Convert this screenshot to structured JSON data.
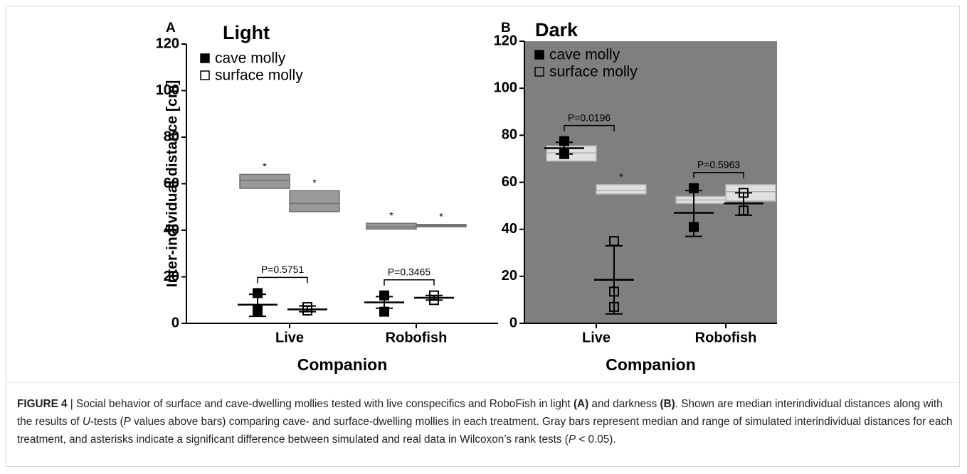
{
  "chart_data": [
    {
      "type": "dotplot",
      "panel_label": "A",
      "title": "Light",
      "ylabel": "Inter-individual distance [cm]",
      "xlabel": "Companion",
      "categories": [
        "Live",
        "Robofish"
      ],
      "ylim": [
        0,
        120
      ],
      "yticks": [
        0,
        20,
        40,
        60,
        80,
        100,
        120
      ],
      "background": "#ffffff",
      "sim_color": "#999999",
      "sim_stroke": "#6e6e6e",
      "series": [
        {
          "name": "cave molly",
          "marker": "filled",
          "color": "#000000",
          "groups": [
            {
              "points": [
                13,
                5.5
              ],
              "center": 8,
              "whisker_low": 3,
              "whisker_high": 12.5,
              "sim_low": 58,
              "sim_median": 61.5,
              "sim_high": 64,
              "sim_note": "*"
            },
            {
              "points": [
                12,
                5
              ],
              "center": 9,
              "whisker_low": 6.5,
              "whisker_high": 11.5,
              "sim_low": 40.5,
              "sim_median": 41.5,
              "sim_high": 43,
              "sim_note": "*"
            }
          ]
        },
        {
          "name": "surface molly",
          "marker": "open",
          "color": "#000000",
          "groups": [
            {
              "points": [
                7,
                5.5
              ],
              "center": 6,
              "whisker_low": 5,
              "whisker_high": 7.5,
              "sim_low": 48,
              "sim_median": 51.5,
              "sim_high": 57,
              "sim_note": "*"
            },
            {
              "points": [
                12,
                10
              ],
              "center": 11,
              "whisker_low": 10,
              "whisker_high": 12,
              "sim_low": 41.5,
              "sim_median": 42,
              "sim_high": 42.5,
              "sim_note": "*"
            }
          ]
        }
      ],
      "comparisons": [
        "P=0.5751",
        "P=0.3465"
      ]
    },
    {
      "type": "dotplot",
      "panel_label": "B",
      "title": "Dark",
      "xlabel": "Companion",
      "categories": [
        "Live",
        "Robofish"
      ],
      "ylim": [
        0,
        120
      ],
      "yticks": [
        0,
        20,
        40,
        60,
        80,
        100,
        120
      ],
      "background": "#7f7f7f",
      "sim_color": "#e0e0e0",
      "sim_stroke": "#b0b0b0",
      "series": [
        {
          "name": "cave molly",
          "marker": "filled",
          "color": "#000000",
          "groups": [
            {
              "points": [
                77.5,
                72
              ],
              "center": 74.5,
              "whisker_low": 72,
              "whisker_high": 77,
              "sim_low": 69,
              "sim_median": 72.5,
              "sim_high": 75.5
            },
            {
              "points": [
                57.5,
                41
              ],
              "center": 47,
              "whisker_low": 37,
              "whisker_high": 56.5,
              "sim_low": 51,
              "sim_median": 52.5,
              "sim_high": 54
            }
          ]
        },
        {
          "name": "surface molly",
          "marker": "open",
          "color": "#000000",
          "groups": [
            {
              "points": [
                35,
                13.5,
                7
              ],
              "center": 18.5,
              "whisker_low": 4,
              "whisker_high": 33,
              "sim_low": 55,
              "sim_median": 56.5,
              "sim_high": 59,
              "sim_note": "*"
            },
            {
              "points": [
                55.5,
                48
              ],
              "center": 51,
              "whisker_low": 46,
              "whisker_high": 55.5,
              "sim_low": 52,
              "sim_median": 56,
              "sim_high": 59
            }
          ]
        }
      ],
      "comparisons": [
        "P=0.0196",
        "P=0.5963"
      ]
    }
  ],
  "caption": [
    {
      "text": "FIGURE 4",
      "style": "bold"
    },
    {
      "text": " | Social behavior of surface and cave-dwelling mollies tested with live conspecifics and RoboFish in light "
    },
    {
      "text": "(A)",
      "style": "bold"
    },
    {
      "text": " and darkness "
    },
    {
      "text": "(B)",
      "style": "bold"
    },
    {
      "text": ". Shown are median interindividual distances along with the results of "
    },
    {
      "text": "U",
      "style": "italic"
    },
    {
      "text": "-tests ("
    },
    {
      "text": "P",
      "style": "italic"
    },
    {
      "text": " values above bars) comparing cave- and surface-dwelling mollies in each treatment. Gray bars represent median and range of simulated interindividual distances for each treatment, and asterisks indicate a significant difference between simulated and real data in Wilcoxon’s rank tests ("
    },
    {
      "text": "P",
      "style": "italic"
    },
    {
      "text": " < 0.05)."
    }
  ]
}
